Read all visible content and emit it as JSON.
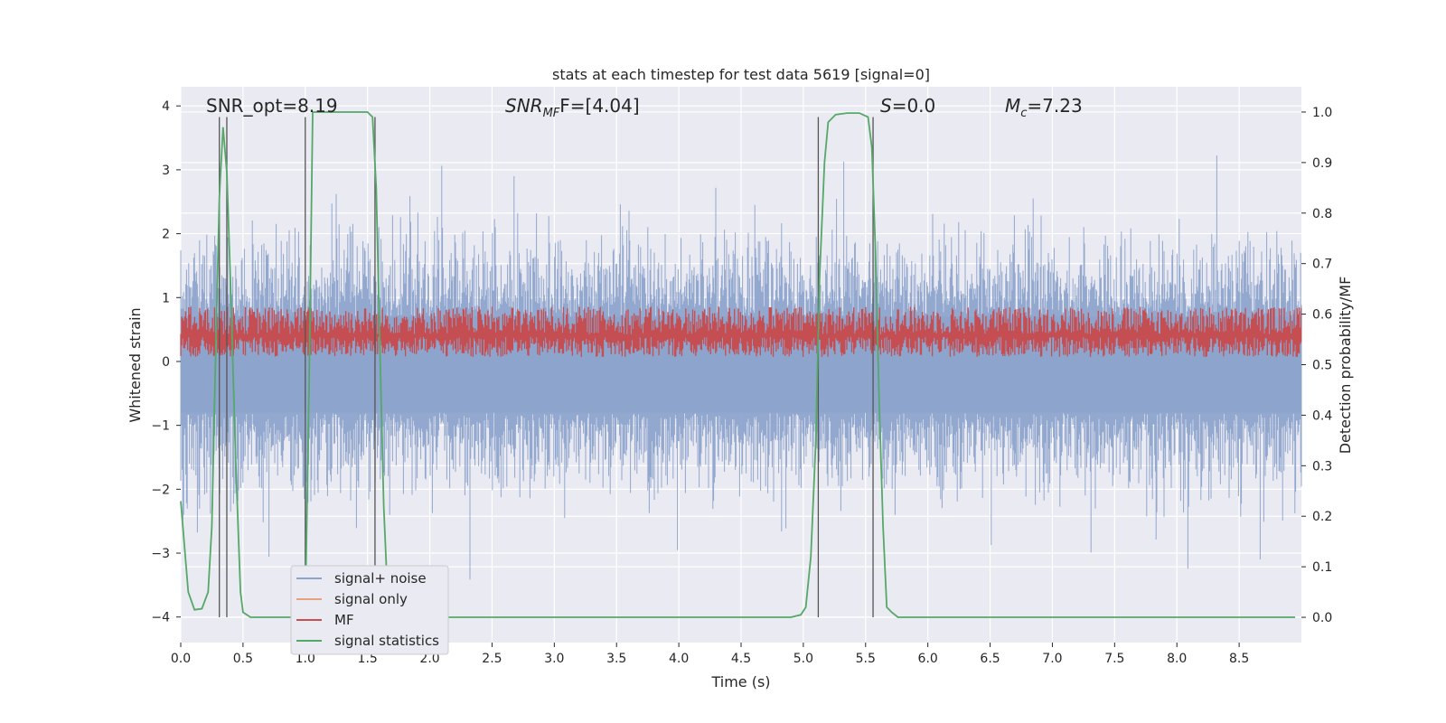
{
  "chart_data": {
    "type": "line",
    "title": "stats at each timestep for test data 5619 [signal=0]",
    "xlabel": "Time (s)",
    "ylabel_left": "Whitened strain",
    "ylabel_right": "Detection probability/MF",
    "xlim": [
      0.0,
      9.0
    ],
    "ylim_left": [
      -4.4,
      4.3
    ],
    "ylim_right": [
      -0.05,
      1.05
    ],
    "xticks": [
      "0.0",
      "0.5",
      "1.0",
      "1.5",
      "2.0",
      "2.5",
      "3.0",
      "3.5",
      "4.0",
      "4.5",
      "5.0",
      "5.5",
      "6.0",
      "6.5",
      "7.0",
      "7.5",
      "8.0",
      "8.5"
    ],
    "yticks_left": [
      "4",
      "3",
      "2",
      "1",
      "0",
      "−1",
      "−2",
      "−3",
      "−4"
    ],
    "yticks_right": [
      "1.0",
      "0.9",
      "0.8",
      "0.7",
      "0.6",
      "0.5",
      "0.4",
      "0.3",
      "0.2",
      "0.1",
      "0.0"
    ],
    "grid": true,
    "legend_position": "lower-left",
    "annotations": {
      "snr_opt": "SNR_opt=8.19",
      "snr_mf_base": "SNR",
      "snr_mf_sub": "MF",
      "snr_mf_rest": "F=[4.04]",
      "s_italic": "S",
      "s_rest": "=0.0",
      "mc_base": "M",
      "mc_sub": "c",
      "mc_rest": "=7.23"
    },
    "vertical_lines": [
      0.31,
      0.37,
      1.0,
      1.56,
      5.12,
      5.56
    ],
    "series": [
      {
        "name": "signal+ noise",
        "color": "#8da4cc",
        "axis": "left",
        "description": "noise fluctuating between about -4 and 3.9"
      },
      {
        "name": "signal only",
        "color": "#e8a17f",
        "axis": "left",
        "values": []
      },
      {
        "name": "MF",
        "color": "#c44e52",
        "axis": "right",
        "description": "band between about 0.51 and 0.62"
      },
      {
        "name": "signal statistics",
        "color": "#55a868",
        "axis": "right",
        "x": [
          0.0,
          0.06,
          0.11,
          0.17,
          0.22,
          0.25,
          0.28,
          0.31,
          0.34,
          0.37,
          0.4,
          0.44,
          0.48,
          0.5,
          0.56,
          0.8,
          0.95,
          1.0,
          1.03,
          1.06,
          1.12,
          1.3,
          1.5,
          1.54,
          1.57,
          1.6,
          1.63,
          1.66,
          1.7,
          2.0,
          3.0,
          4.0,
          4.9,
          4.98,
          5.02,
          5.06,
          5.1,
          5.13,
          5.17,
          5.2,
          5.26,
          5.35,
          5.45,
          5.52,
          5.55,
          5.58,
          5.61,
          5.64,
          5.67,
          5.71,
          5.76,
          6.0,
          7.0,
          8.0,
          8.95
        ],
        "y": [
          0.23,
          0.05,
          0.015,
          0.017,
          0.05,
          0.18,
          0.52,
          0.83,
          0.97,
          0.88,
          0.66,
          0.32,
          0.05,
          0.01,
          0.0,
          0.0,
          0.0,
          0.01,
          0.45,
          1.0,
          1.0,
          1.0,
          1.0,
          0.99,
          0.85,
          0.53,
          0.22,
          0.05,
          0.0,
          0.0,
          0.0,
          0.0,
          0.0,
          0.005,
          0.02,
          0.12,
          0.35,
          0.67,
          0.9,
          0.98,
          0.995,
          0.998,
          0.998,
          0.99,
          0.93,
          0.72,
          0.42,
          0.18,
          0.02,
          0.01,
          0.0,
          0.0,
          0.0,
          0.0,
          0.0
        ]
      }
    ]
  }
}
